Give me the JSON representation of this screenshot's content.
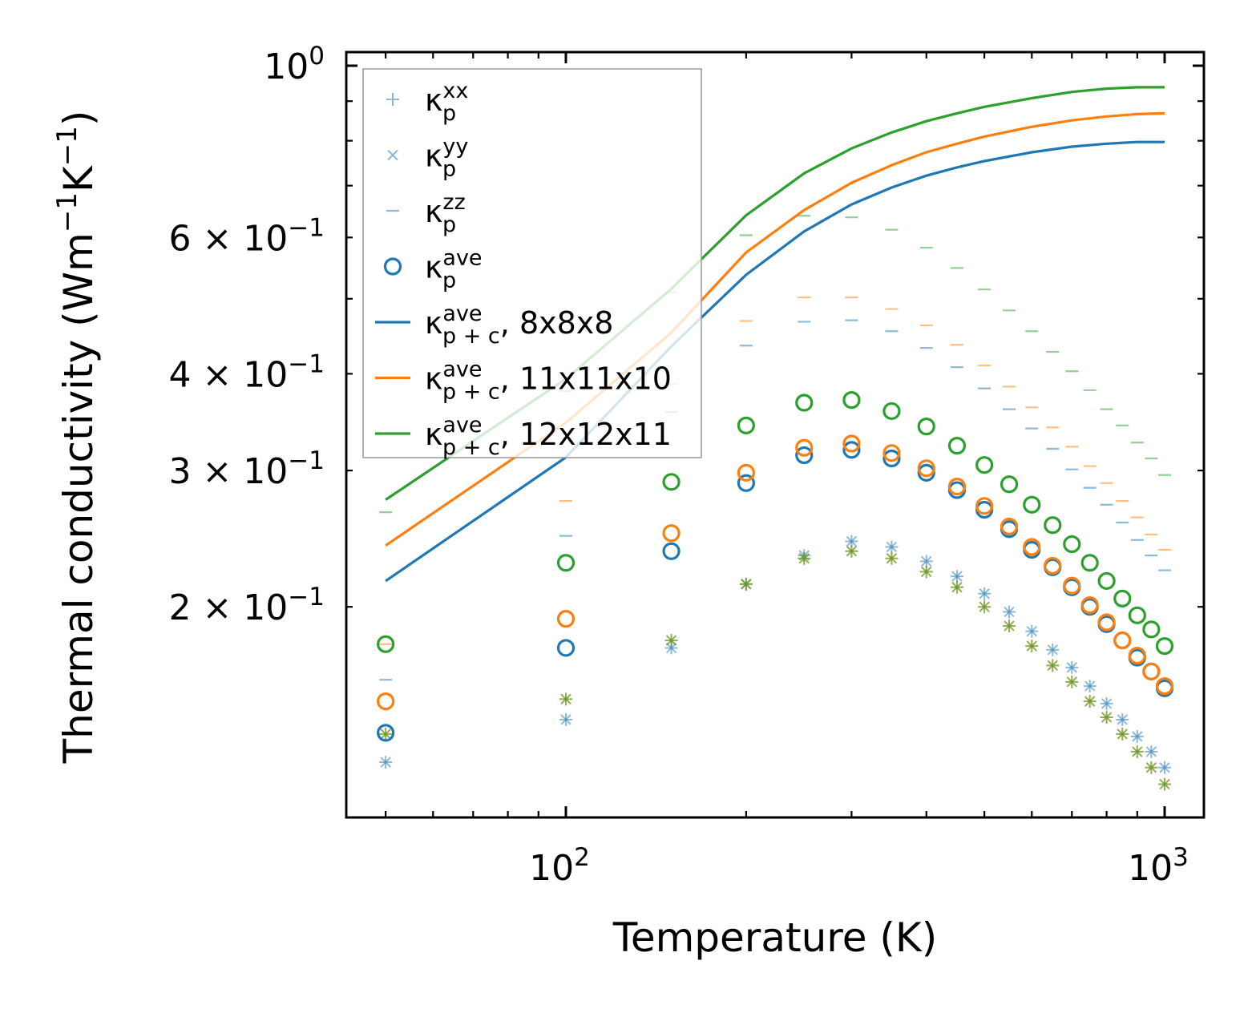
{
  "chart_data": {
    "type": "scatter",
    "xlabel": "Temperature (K)",
    "ylabel_base": "Thermal conductivity (Wm",
    "ylabel_sup1": "−1",
    "ylabel_mid": "K",
    "ylabel_sup2": "−1",
    "ylabel_end": ")",
    "xscale": "log",
    "yscale": "log",
    "xlim": [
      43,
      1163
    ],
    "ylim": [
      0.107,
      1.041
    ],
    "grid": false,
    "legend_position": "top-left",
    "x_ticks": [
      {
        "value": 100,
        "base": "10",
        "exp": "2"
      },
      {
        "value": 1000,
        "base": "10",
        "exp": "3"
      }
    ],
    "y_ticks": [
      {
        "value": 1.0,
        "mant": "",
        "base": "10",
        "exp": "0"
      },
      {
        "value": 0.6,
        "mant": "6 × ",
        "base": "10",
        "exp": "−1"
      },
      {
        "value": 0.4,
        "mant": "4 × ",
        "base": "10",
        "exp": "−1"
      },
      {
        "value": 0.3,
        "mant": "3 × ",
        "base": "10",
        "exp": "−1"
      },
      {
        "value": 0.2,
        "mant": "2 × ",
        "base": "10",
        "exp": "−1"
      }
    ],
    "colors": {
      "c8": "#1f77b4",
      "c11": "#ff7f0e",
      "c12": "#2ca02c"
    },
    "temperatures": [
      50,
      100,
      150,
      200,
      250,
      300,
      350,
      400,
      450,
      500,
      550,
      600,
      650,
      700,
      750,
      800,
      850,
      900,
      950,
      1000
    ],
    "legend": [
      {
        "marker": "plus",
        "base": "κ",
        "sup": "xx",
        "sub": "p",
        "suffix": "",
        "color": "#1f77b4"
      },
      {
        "marker": "cross",
        "base": "κ",
        "sup": "yy",
        "sub": "p",
        "suffix": "",
        "color": "#1f77b4"
      },
      {
        "marker": "dash",
        "base": "κ",
        "sup": "zz",
        "sub": "p",
        "suffix": "",
        "color": "#1f77b4"
      },
      {
        "marker": "circle",
        "base": "κ",
        "sup": "ave",
        "sub": "p",
        "suffix": "",
        "color": "#1f77b4"
      },
      {
        "marker": "line",
        "base": "κ",
        "sup": "ave",
        "sub": "p + c",
        "suffix": ", 8x8x8",
        "color": "#1f77b4"
      },
      {
        "marker": "line",
        "base": "κ",
        "sup": "ave",
        "sub": "p + c",
        "suffix": ", 11x11x10",
        "color": "#ff7f0e"
      },
      {
        "marker": "line",
        "base": "κ",
        "sup": "ave",
        "sub": "p + c",
        "suffix": ", 12x12x11",
        "color": "#2ca02c"
      }
    ],
    "lines": [
      {
        "name": "κp+c ave, 8x8x8",
        "color": "#1f77b4",
        "x": [
          50,
          100,
          150,
          200,
          250,
          300,
          350,
          400,
          450,
          500,
          600,
          700,
          800,
          900,
          1000
        ],
        "y": [
          0.216,
          0.312,
          0.434,
          0.537,
          0.611,
          0.662,
          0.696,
          0.721,
          0.739,
          0.753,
          0.773,
          0.786,
          0.793,
          0.797,
          0.797
        ]
      },
      {
        "name": "κp+c ave, 11x11x10",
        "color": "#ff7f0e",
        "x": [
          50,
          100,
          150,
          200,
          250,
          300,
          350,
          400,
          450,
          500,
          600,
          700,
          800,
          900,
          1000
        ],
        "y": [
          0.24,
          0.346,
          0.452,
          0.574,
          0.651,
          0.706,
          0.744,
          0.773,
          0.793,
          0.81,
          0.834,
          0.85,
          0.86,
          0.866,
          0.868
        ]
      },
      {
        "name": "κp+c ave, 12x12x11",
        "color": "#2ca02c",
        "x": [
          50,
          100,
          150,
          200,
          250,
          300,
          350,
          400,
          450,
          500,
          600,
          700,
          800,
          900,
          1000
        ],
        "y": [
          0.275,
          0.394,
          0.515,
          0.641,
          0.726,
          0.782,
          0.82,
          0.848,
          0.868,
          0.885,
          0.908,
          0.925,
          0.934,
          0.938,
          0.938
        ]
      }
    ],
    "series": [
      {
        "name": "κp ave 8x8x8",
        "marker": "circle",
        "color": "#1f77b4",
        "values": [
          0.1375,
          0.177,
          0.236,
          0.289,
          0.314,
          0.319,
          0.311,
          0.298,
          0.283,
          0.267,
          0.252,
          0.237,
          0.225,
          0.212,
          0.2,
          0.19,
          0.181,
          0.172,
          0.165,
          0.157
        ]
      },
      {
        "name": "κp ave 11x11x10",
        "marker": "circle",
        "color": "#ff7f0e",
        "values": [
          0.151,
          0.193,
          0.249,
          0.298,
          0.321,
          0.325,
          0.316,
          0.302,
          0.286,
          0.27,
          0.254,
          0.239,
          0.226,
          0.213,
          0.201,
          0.191,
          0.181,
          0.173,
          0.165,
          0.158
        ]
      },
      {
        "name": "κp ave 12x12x11",
        "marker": "circle",
        "color": "#2ca02c",
        "values": [
          0.179,
          0.228,
          0.29,
          0.343,
          0.367,
          0.37,
          0.358,
          0.342,
          0.323,
          0.305,
          0.288,
          0.271,
          0.255,
          0.241,
          0.228,
          0.216,
          0.205,
          0.195,
          0.187,
          0.178
        ]
      },
      {
        "name": "κp zz 8x8x8",
        "marker": "dash",
        "color": "#1f77b4",
        "values": [
          0.161,
          0.247,
          0.357,
          0.435,
          0.467,
          0.469,
          0.454,
          0.432,
          0.408,
          0.383,
          0.36,
          0.34,
          0.32,
          0.301,
          0.285,
          0.271,
          0.257,
          0.244,
          0.233,
          0.223
        ]
      },
      {
        "name": "κp zz 11x11x10",
        "marker": "dash",
        "color": "#ff7f0e",
        "values": [
          0.179,
          0.274,
          0.388,
          0.468,
          0.502,
          0.502,
          0.485,
          0.462,
          0.436,
          0.41,
          0.385,
          0.362,
          0.341,
          0.322,
          0.304,
          0.289,
          0.274,
          0.261,
          0.248,
          0.237
        ]
      },
      {
        "name": "κp zz 12x12x11",
        "marker": "dash",
        "color": "#2ca02c",
        "values": [
          0.265,
          0.38,
          0.51,
          0.604,
          0.64,
          0.637,
          0.614,
          0.582,
          0.548,
          0.514,
          0.483,
          0.454,
          0.427,
          0.403,
          0.381,
          0.36,
          0.343,
          0.326,
          0.311,
          0.296
        ]
      },
      {
        "name": "κp xx 8x8x8",
        "marker": "plus",
        "color": "#1f77b4",
        "values": [
          0.126,
          0.143,
          0.177,
          0.214,
          0.233,
          0.243,
          0.239,
          0.229,
          0.219,
          0.208,
          0.197,
          0.186,
          0.176,
          0.167,
          0.158,
          0.15,
          0.143,
          0.136,
          0.13,
          0.124
        ]
      },
      {
        "name": "κp yy 8x8x8",
        "marker": "cross",
        "color": "#1f77b4",
        "values": [
          0.126,
          0.143,
          0.177,
          0.214,
          0.233,
          0.243,
          0.239,
          0.229,
          0.219,
          0.208,
          0.197,
          0.186,
          0.176,
          0.167,
          0.158,
          0.15,
          0.143,
          0.136,
          0.13,
          0.124
        ]
      },
      {
        "name": "κp xx 11x11x10",
        "marker": "plus",
        "color": "#ff7f0e",
        "values": [
          0.137,
          0.152,
          0.181,
          0.214,
          0.231,
          0.236,
          0.231,
          0.222,
          0.212,
          0.2,
          0.189,
          0.178,
          0.168,
          0.16,
          0.151,
          0.144,
          0.137,
          0.13,
          0.124,
          0.118
        ]
      },
      {
        "name": "κp yy 11x11x10",
        "marker": "cross",
        "color": "#ff7f0e",
        "values": [
          0.137,
          0.152,
          0.181,
          0.214,
          0.231,
          0.236,
          0.231,
          0.222,
          0.212,
          0.2,
          0.189,
          0.178,
          0.168,
          0.16,
          0.151,
          0.144,
          0.137,
          0.13,
          0.124,
          0.118
        ]
      },
      {
        "name": "κp xx 12x12x11",
        "marker": "plus",
        "color": "#2ca02c",
        "values": [
          0.137,
          0.152,
          0.181,
          0.214,
          0.231,
          0.236,
          0.231,
          0.222,
          0.212,
          0.2,
          0.189,
          0.178,
          0.168,
          0.16,
          0.151,
          0.144,
          0.137,
          0.13,
          0.124,
          0.118
        ]
      },
      {
        "name": "κp yy 12x12x11",
        "marker": "cross",
        "color": "#2ca02c",
        "values": [
          0.137,
          0.152,
          0.181,
          0.214,
          0.231,
          0.236,
          0.231,
          0.222,
          0.212,
          0.2,
          0.189,
          0.178,
          0.168,
          0.16,
          0.151,
          0.144,
          0.137,
          0.13,
          0.124,
          0.118
        ]
      }
    ]
  }
}
